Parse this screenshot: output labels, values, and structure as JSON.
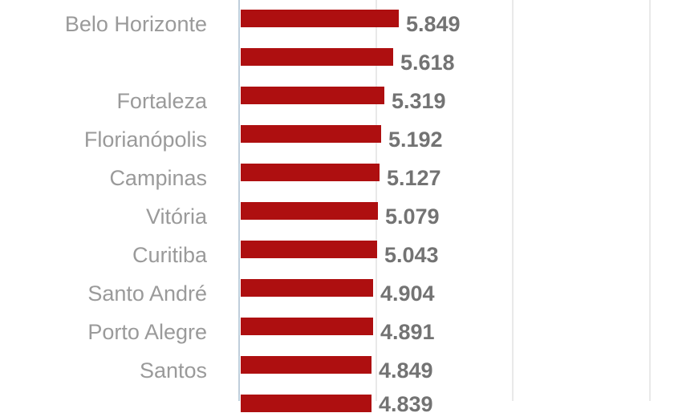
{
  "chart_data": {
    "type": "bar",
    "orientation": "horizontal",
    "title": "",
    "categories": [
      "Belo Horizonte",
      "",
      "Fortaleza",
      "Florianópolis",
      "Campinas",
      "Vitória",
      "Curitiba",
      "Santo André",
      "Porto Alegre",
      "Santos",
      ""
    ],
    "values": [
      5849,
      5618,
      5319,
      5192,
      5127,
      5079,
      5043,
      4904,
      4891,
      4849,
      4839
    ],
    "value_labels": [
      "5.849",
      "5.618",
      "5.319",
      "5.192",
      "5.127",
      "5.079",
      "5.043",
      "4.904",
      "4.891",
      "4.849",
      "4.839"
    ],
    "xlim": [
      0,
      15900
    ],
    "gridlines_x": [
      5000,
      10000,
      15000
    ],
    "grid_on": true,
    "legend_position": "none",
    "colors": {
      "bar": "#AE0F10",
      "axis_line": "#BFCEDB",
      "gridline": "#E9E9E9",
      "category_label": "#9A9A9A",
      "value_label": "#737373",
      "background": "#FFFFFF"
    }
  }
}
